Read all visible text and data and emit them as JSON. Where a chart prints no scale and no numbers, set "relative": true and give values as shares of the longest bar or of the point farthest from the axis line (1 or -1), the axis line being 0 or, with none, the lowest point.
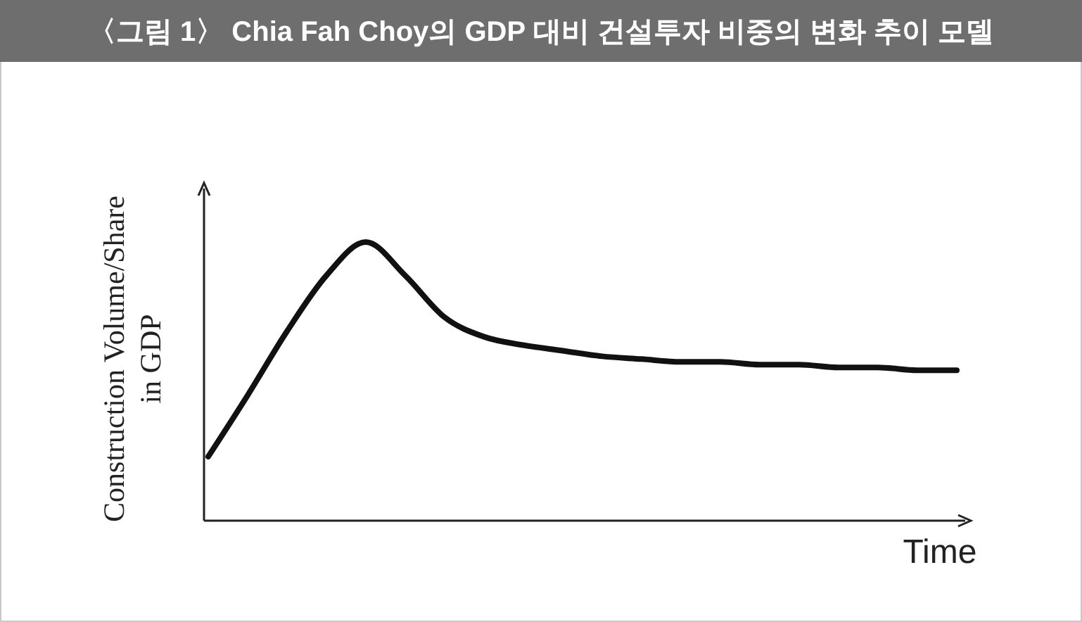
{
  "chart_data": {
    "type": "line",
    "title": "〈그림 1〉 Chia Fah Choy의 GDP 대비 건설투자 비중의 변화 추이 모델",
    "xlabel": "Time",
    "ylabel": "Construction Volume/Share in GDP",
    "relative": true,
    "marker": "none",
    "line_style": "solid",
    "categories": [
      null,
      null,
      null,
      null,
      null,
      null,
      null,
      null,
      null,
      null,
      null,
      null,
      null,
      null,
      null,
      null,
      null,
      null,
      null,
      null
    ],
    "series": [
      {
        "color": "#111111",
        "values": [
          0.23,
          0.45,
          0.68,
          0.88,
          1,
          0.88,
          0.73,
          0.66,
          0.63,
          0.61,
          0.59,
          0.58,
          0.57,
          0.57,
          0.56,
          0.56,
          0.55,
          0.55,
          0.54,
          0.54
        ]
      }
    ]
  }
}
